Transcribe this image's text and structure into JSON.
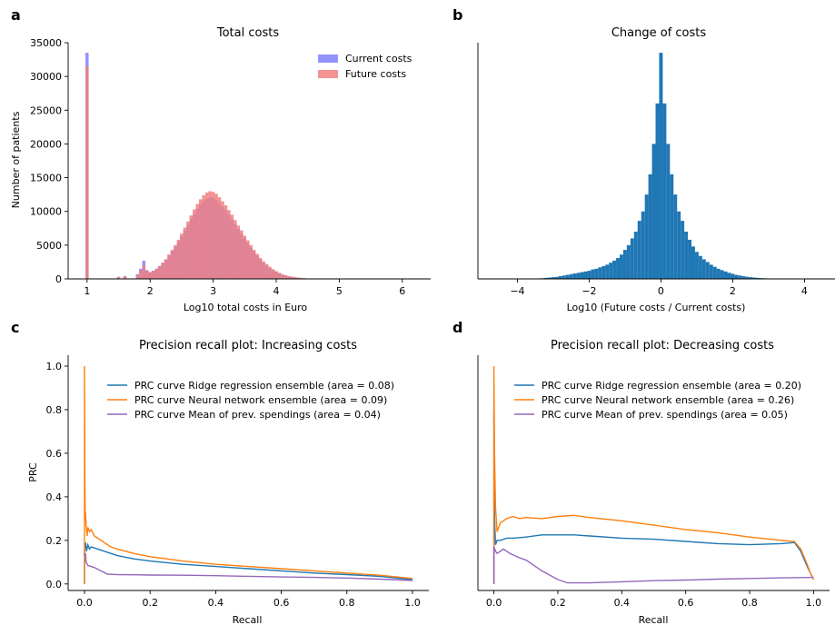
{
  "panels": [
    {
      "label": "a",
      "title": "Total costs"
    },
    {
      "label": "b",
      "title": "Change of costs"
    },
    {
      "label": "c",
      "title": "Precision recall plot: Increasing costs"
    },
    {
      "label": "d",
      "title": "Precision recall plot: Decreasing costs"
    }
  ],
  "chart_data": [
    {
      "type": "bar",
      "title": "Total costs",
      "xlabel": "Log10 total costs in Euro",
      "ylabel": "Number of patients",
      "xlim": [
        0.7,
        6.45
      ],
      "ylim": [
        0,
        35000
      ],
      "xticks": [
        1,
        2,
        3,
        4,
        5,
        6
      ],
      "yticks": [
        0,
        5000,
        10000,
        15000,
        20000,
        25000,
        30000,
        35000
      ],
      "legend_position": "top-right",
      "grid": false,
      "bin_width": 0.05,
      "series": [
        {
          "name": "Current costs",
          "color": "#7f7fff",
          "x": [
            1.0,
            1.5,
            1.6,
            1.8,
            1.85,
            1.9,
            1.95,
            2.0,
            2.05,
            2.1,
            2.15,
            2.2,
            2.25,
            2.3,
            2.35,
            2.4,
            2.45,
            2.5,
            2.55,
            2.6,
            2.65,
            2.7,
            2.75,
            2.8,
            2.85,
            2.9,
            2.95,
            3.0,
            3.05,
            3.1,
            3.15,
            3.2,
            3.25,
            3.3,
            3.35,
            3.4,
            3.45,
            3.5,
            3.55,
            3.6,
            3.65,
            3.7,
            3.75,
            3.8,
            3.85,
            3.9,
            3.95,
            4.0,
            4.05,
            4.1,
            4.15,
            4.2,
            4.25,
            4.3,
            4.35,
            4.4,
            4.45,
            4.5,
            4.55,
            4.6,
            4.65,
            4.7,
            4.75,
            4.8,
            4.85,
            4.9,
            4.95
          ],
          "values": [
            33500,
            300,
            400,
            700,
            1500,
            2700,
            1300,
            1000,
            1200,
            1500,
            1900,
            2400,
            2900,
            3500,
            4100,
            4800,
            5500,
            6300,
            7100,
            7900,
            8800,
            9600,
            10400,
            11000,
            11600,
            11900,
            12100,
            12000,
            11700,
            11200,
            10700,
            10100,
            9500,
            8800,
            8100,
            7400,
            6700,
            6000,
            5300,
            4600,
            4000,
            3400,
            2900,
            2400,
            2000,
            1600,
            1300,
            1050,
            850,
            650,
            500,
            400,
            300,
            230,
            170,
            120,
            90,
            60,
            45,
            30,
            20,
            15,
            10,
            8,
            5,
            3,
            2
          ]
        },
        {
          "name": "Future costs",
          "color": "#f07f7f",
          "x": [
            1.0,
            1.5,
            1.6,
            1.8,
            1.85,
            1.9,
            1.95,
            2.0,
            2.05,
            2.1,
            2.15,
            2.2,
            2.25,
            2.3,
            2.35,
            2.4,
            2.45,
            2.5,
            2.55,
            2.6,
            2.65,
            2.7,
            2.75,
            2.8,
            2.85,
            2.9,
            2.95,
            3.0,
            3.05,
            3.1,
            3.15,
            3.2,
            3.25,
            3.3,
            3.35,
            3.4,
            3.45,
            3.5,
            3.55,
            3.6,
            3.65,
            3.7,
            3.75,
            3.8,
            3.85,
            3.9,
            3.95,
            4.0,
            4.05,
            4.1,
            4.15,
            4.2,
            4.25,
            4.3,
            4.35,
            4.4,
            4.45,
            4.5,
            4.55,
            4.6,
            4.65,
            4.7,
            4.75,
            4.8,
            4.85,
            4.9,
            4.95
          ],
          "values": [
            31500,
            300,
            350,
            600,
            1200,
            2000,
            1200,
            1000,
            1200,
            1500,
            1900,
            2400,
            2900,
            3600,
            4300,
            5000,
            5800,
            6700,
            7600,
            8500,
            9400,
            10300,
            11100,
            11800,
            12400,
            12800,
            13000,
            12900,
            12600,
            12100,
            11500,
            10900,
            10200,
            9500,
            8700,
            7900,
            7200,
            6400,
            5700,
            5000,
            4300,
            3700,
            3100,
            2600,
            2200,
            1800,
            1450,
            1150,
            900,
            700,
            550,
            420,
            320,
            240,
            180,
            130,
            95,
            65,
            45,
            30,
            20,
            15,
            10,
            8,
            5,
            3,
            2
          ]
        }
      ]
    },
    {
      "type": "bar",
      "title": "Change of costs",
      "xlabel": "Log10 (Future costs / Current costs)",
      "ylabel": "",
      "xlim": [
        -5.1,
        4.85
      ],
      "ylim": [
        0,
        35000
      ],
      "xticks": [
        -4,
        -2,
        0,
        2,
        4
      ],
      "yticks": [],
      "grid": false,
      "bin_width": 0.1,
      "series": [
        {
          "name": "",
          "color": "#1f77b4",
          "x": [
            -4.5,
            -4.4,
            -4.3,
            -4.2,
            -4.1,
            -4.0,
            -3.9,
            -3.8,
            -3.7,
            -3.6,
            -3.5,
            -3.4,
            -3.3,
            -3.2,
            -3.1,
            -3.0,
            -2.9,
            -2.8,
            -2.7,
            -2.6,
            -2.5,
            -2.4,
            -2.3,
            -2.2,
            -2.1,
            -2.0,
            -1.9,
            -1.8,
            -1.7,
            -1.6,
            -1.5,
            -1.4,
            -1.3,
            -1.2,
            -1.1,
            -1.0,
            -0.9,
            -0.8,
            -0.7,
            -0.6,
            -0.5,
            -0.4,
            -0.3,
            -0.2,
            -0.1,
            0.0,
            0.1,
            0.2,
            0.3,
            0.4,
            0.5,
            0.6,
            0.7,
            0.8,
            0.9,
            1.0,
            1.1,
            1.2,
            1.3,
            1.4,
            1.5,
            1.6,
            1.7,
            1.8,
            1.9,
            2.0,
            2.1,
            2.2,
            2.3,
            2.4,
            2.5,
            2.6,
            2.7,
            2.8,
            2.9,
            3.0,
            3.1,
            3.2,
            3.3,
            3.4,
            3.5,
            3.6,
            3.7,
            3.8,
            3.9,
            4.0,
            4.1,
            4.2,
            4.3,
            4.4
          ],
          "values": [
            5,
            8,
            10,
            12,
            15,
            20,
            25,
            30,
            40,
            50,
            60,
            80,
            100,
            150,
            200,
            250,
            300,
            400,
            500,
            600,
            700,
            800,
            900,
            1000,
            1100,
            1200,
            1400,
            1500,
            1700,
            1900,
            2100,
            2400,
            2700,
            3100,
            3600,
            4300,
            5000,
            6000,
            7000,
            8600,
            10000,
            12500,
            15500,
            20000,
            26000,
            33500,
            26000,
            20000,
            15500,
            12500,
            10000,
            8600,
            7000,
            5800,
            4800,
            4000,
            3400,
            2900,
            2500,
            2100,
            1800,
            1500,
            1300,
            1100,
            900,
            750,
            600,
            500,
            400,
            320,
            250,
            200,
            150,
            120,
            90,
            70,
            50,
            40,
            30,
            20,
            15,
            10,
            8,
            6,
            5,
            4,
            3,
            2,
            2,
            1
          ]
        }
      ]
    },
    {
      "type": "line",
      "title": "Precision recall plot: Increasing costs",
      "xlabel": "Recall",
      "ylabel": "PRC",
      "xlim": [
        -0.05,
        1.05
      ],
      "ylim": [
        -0.03,
        1.05
      ],
      "xticks": [
        0.0,
        0.2,
        0.4,
        0.6,
        0.8,
        1.0
      ],
      "yticks": [
        0.0,
        0.2,
        0.4,
        0.6,
        0.8,
        1.0
      ],
      "legend_position": "top-right",
      "grid": false,
      "series": [
        {
          "name": "PRC curve Ridge regression ensemble (area = 0.08)",
          "color": "#1f77b4",
          "x": [
            0.0,
            0.0,
            0.003,
            0.006,
            0.01,
            0.015,
            0.02,
            0.03,
            0.05,
            0.08,
            0.1,
            0.15,
            0.2,
            0.3,
            0.4,
            0.5,
            0.6,
            0.7,
            0.8,
            0.9,
            1.0
          ],
          "y": [
            0.0,
            0.16,
            0.19,
            0.15,
            0.18,
            0.16,
            0.17,
            0.165,
            0.155,
            0.14,
            0.13,
            0.115,
            0.105,
            0.09,
            0.08,
            0.07,
            0.06,
            0.05,
            0.043,
            0.035,
            0.02
          ]
        },
        {
          "name": "PRC curve Neural network ensemble (area = 0.09)",
          "color": "#ff7f0e",
          "x": [
            0.0,
            0.0,
            0.001,
            0.002,
            0.003,
            0.005,
            0.008,
            0.01,
            0.015,
            0.02,
            0.03,
            0.05,
            0.08,
            0.1,
            0.15,
            0.2,
            0.3,
            0.4,
            0.5,
            0.6,
            0.7,
            0.8,
            0.9,
            1.0
          ],
          "y": [
            0.0,
            1.0,
            0.5,
            0.3,
            0.33,
            0.27,
            0.22,
            0.26,
            0.24,
            0.25,
            0.22,
            0.2,
            0.17,
            0.16,
            0.14,
            0.125,
            0.105,
            0.09,
            0.08,
            0.07,
            0.06,
            0.05,
            0.04,
            0.025
          ]
        },
        {
          "name": "PRC curve Mean of prev. spendings (area = 0.04)",
          "color": "#9467bd",
          "x": [
            0.0,
            0.003,
            0.005,
            0.01,
            0.02,
            0.03,
            0.05,
            0.07,
            0.1,
            0.15,
            0.2,
            0.3,
            0.4,
            0.5,
            0.6,
            0.7,
            0.8,
            0.9,
            1.0
          ],
          "y": [
            0.13,
            0.14,
            0.1,
            0.085,
            0.08,
            0.075,
            0.06,
            0.045,
            0.043,
            0.042,
            0.041,
            0.04,
            0.038,
            0.035,
            0.032,
            0.03,
            0.027,
            0.022,
            0.016
          ]
        }
      ]
    },
    {
      "type": "line",
      "title": "Precision recall plot: Decreasing costs",
      "xlabel": "Recall",
      "ylabel": "",
      "xlim": [
        -0.05,
        1.05
      ],
      "ylim": [
        -0.03,
        1.05
      ],
      "xticks": [
        0.0,
        0.2,
        0.4,
        0.6,
        0.8,
        1.0
      ],
      "yticks": [],
      "legend_position": "top-right",
      "grid": false,
      "series": [
        {
          "name": "PRC curve Ridge regression ensemble (area = 0.20)",
          "color": "#1f77b4",
          "x": [
            0.0,
            0.0,
            0.002,
            0.005,
            0.01,
            0.02,
            0.04,
            0.06,
            0.1,
            0.15,
            0.2,
            0.25,
            0.3,
            0.4,
            0.5,
            0.6,
            0.7,
            0.8,
            0.9,
            0.94,
            0.96,
            0.98,
            0.99,
            1.0
          ],
          "y": [
            0.0,
            0.8,
            0.3,
            0.18,
            0.2,
            0.2,
            0.21,
            0.21,
            0.215,
            0.225,
            0.225,
            0.225,
            0.22,
            0.21,
            0.205,
            0.195,
            0.185,
            0.18,
            0.185,
            0.19,
            0.15,
            0.08,
            0.05,
            0.02
          ]
        },
        {
          "name": "PRC curve Neural network ensemble (area = 0.26)",
          "color": "#ff7f0e",
          "x": [
            0.0,
            0.0,
            0.002,
            0.005,
            0.01,
            0.02,
            0.04,
            0.06,
            0.08,
            0.1,
            0.15,
            0.2,
            0.25,
            0.3,
            0.4,
            0.5,
            0.6,
            0.7,
            0.8,
            0.9,
            0.94,
            0.96,
            0.98,
            0.99,
            1.0
          ],
          "y": [
            0.0,
            1.0,
            0.6,
            0.35,
            0.24,
            0.28,
            0.3,
            0.31,
            0.3,
            0.305,
            0.3,
            0.31,
            0.315,
            0.305,
            0.29,
            0.27,
            0.25,
            0.235,
            0.215,
            0.2,
            0.195,
            0.16,
            0.09,
            0.05,
            0.02
          ]
        },
        {
          "name": "PRC curve Mean of prev. spendings (area = 0.05)",
          "color": "#9467bd",
          "x": [
            0.0,
            0.0,
            0.005,
            0.01,
            0.03,
            0.05,
            0.08,
            0.1,
            0.15,
            0.2,
            0.23,
            0.3,
            0.4,
            0.5,
            0.6,
            0.7,
            0.8,
            0.9,
            1.0
          ],
          "y": [
            0.0,
            0.17,
            0.15,
            0.14,
            0.16,
            0.14,
            0.12,
            0.11,
            0.06,
            0.02,
            0.005,
            0.005,
            0.01,
            0.015,
            0.018,
            0.022,
            0.025,
            0.028,
            0.03
          ]
        }
      ]
    }
  ]
}
